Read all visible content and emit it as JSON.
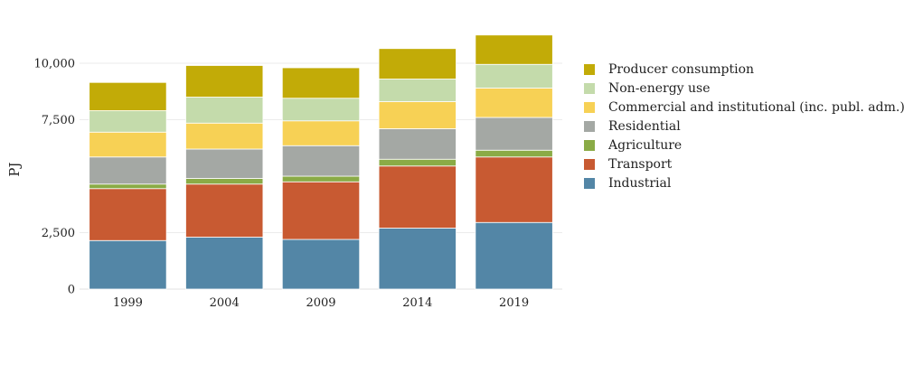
{
  "chart_data": {
    "type": "bar",
    "stacked": true,
    "categories": [
      "1999",
      "2004",
      "2009",
      "2014",
      "2019"
    ],
    "ylabel": "PJ",
    "xlabel": "",
    "ylim": [
      0,
      11000
    ],
    "yticks": [
      0,
      2500,
      7500,
      10000
    ],
    "ytick_labels": [
      "0",
      "2,500",
      "7,500",
      "10,000"
    ],
    "grid": true,
    "legend_position": "right",
    "series": [
      {
        "name": "Industrial",
        "color": "#5386a6",
        "values": [
          2150,
          2300,
          2200,
          2700,
          2950
        ]
      },
      {
        "name": "Transport",
        "color": "#c85a32",
        "values": [
          2300,
          2350,
          2550,
          2750,
          2900
        ]
      },
      {
        "name": "Agriculture",
        "color": "#8aab46",
        "values": [
          200,
          250,
          250,
          300,
          300
        ]
      },
      {
        "name": "Residential",
        "color": "#a4a8a4",
        "values": [
          1200,
          1300,
          1350,
          1350,
          1450
        ]
      },
      {
        "name": "Commercial and institutional (inc. publ. adm.)",
        "color": "#f7d155",
        "values": [
          1100,
          1150,
          1100,
          1200,
          1300
        ]
      },
      {
        "name": "Non-energy use",
        "color": "#c4dbab",
        "values": [
          950,
          1150,
          1000,
          1000,
          1050
        ]
      },
      {
        "name": "Producer consumption",
        "color": "#c2ab07",
        "values": [
          1250,
          1400,
          1350,
          1350,
          1300
        ]
      }
    ]
  }
}
